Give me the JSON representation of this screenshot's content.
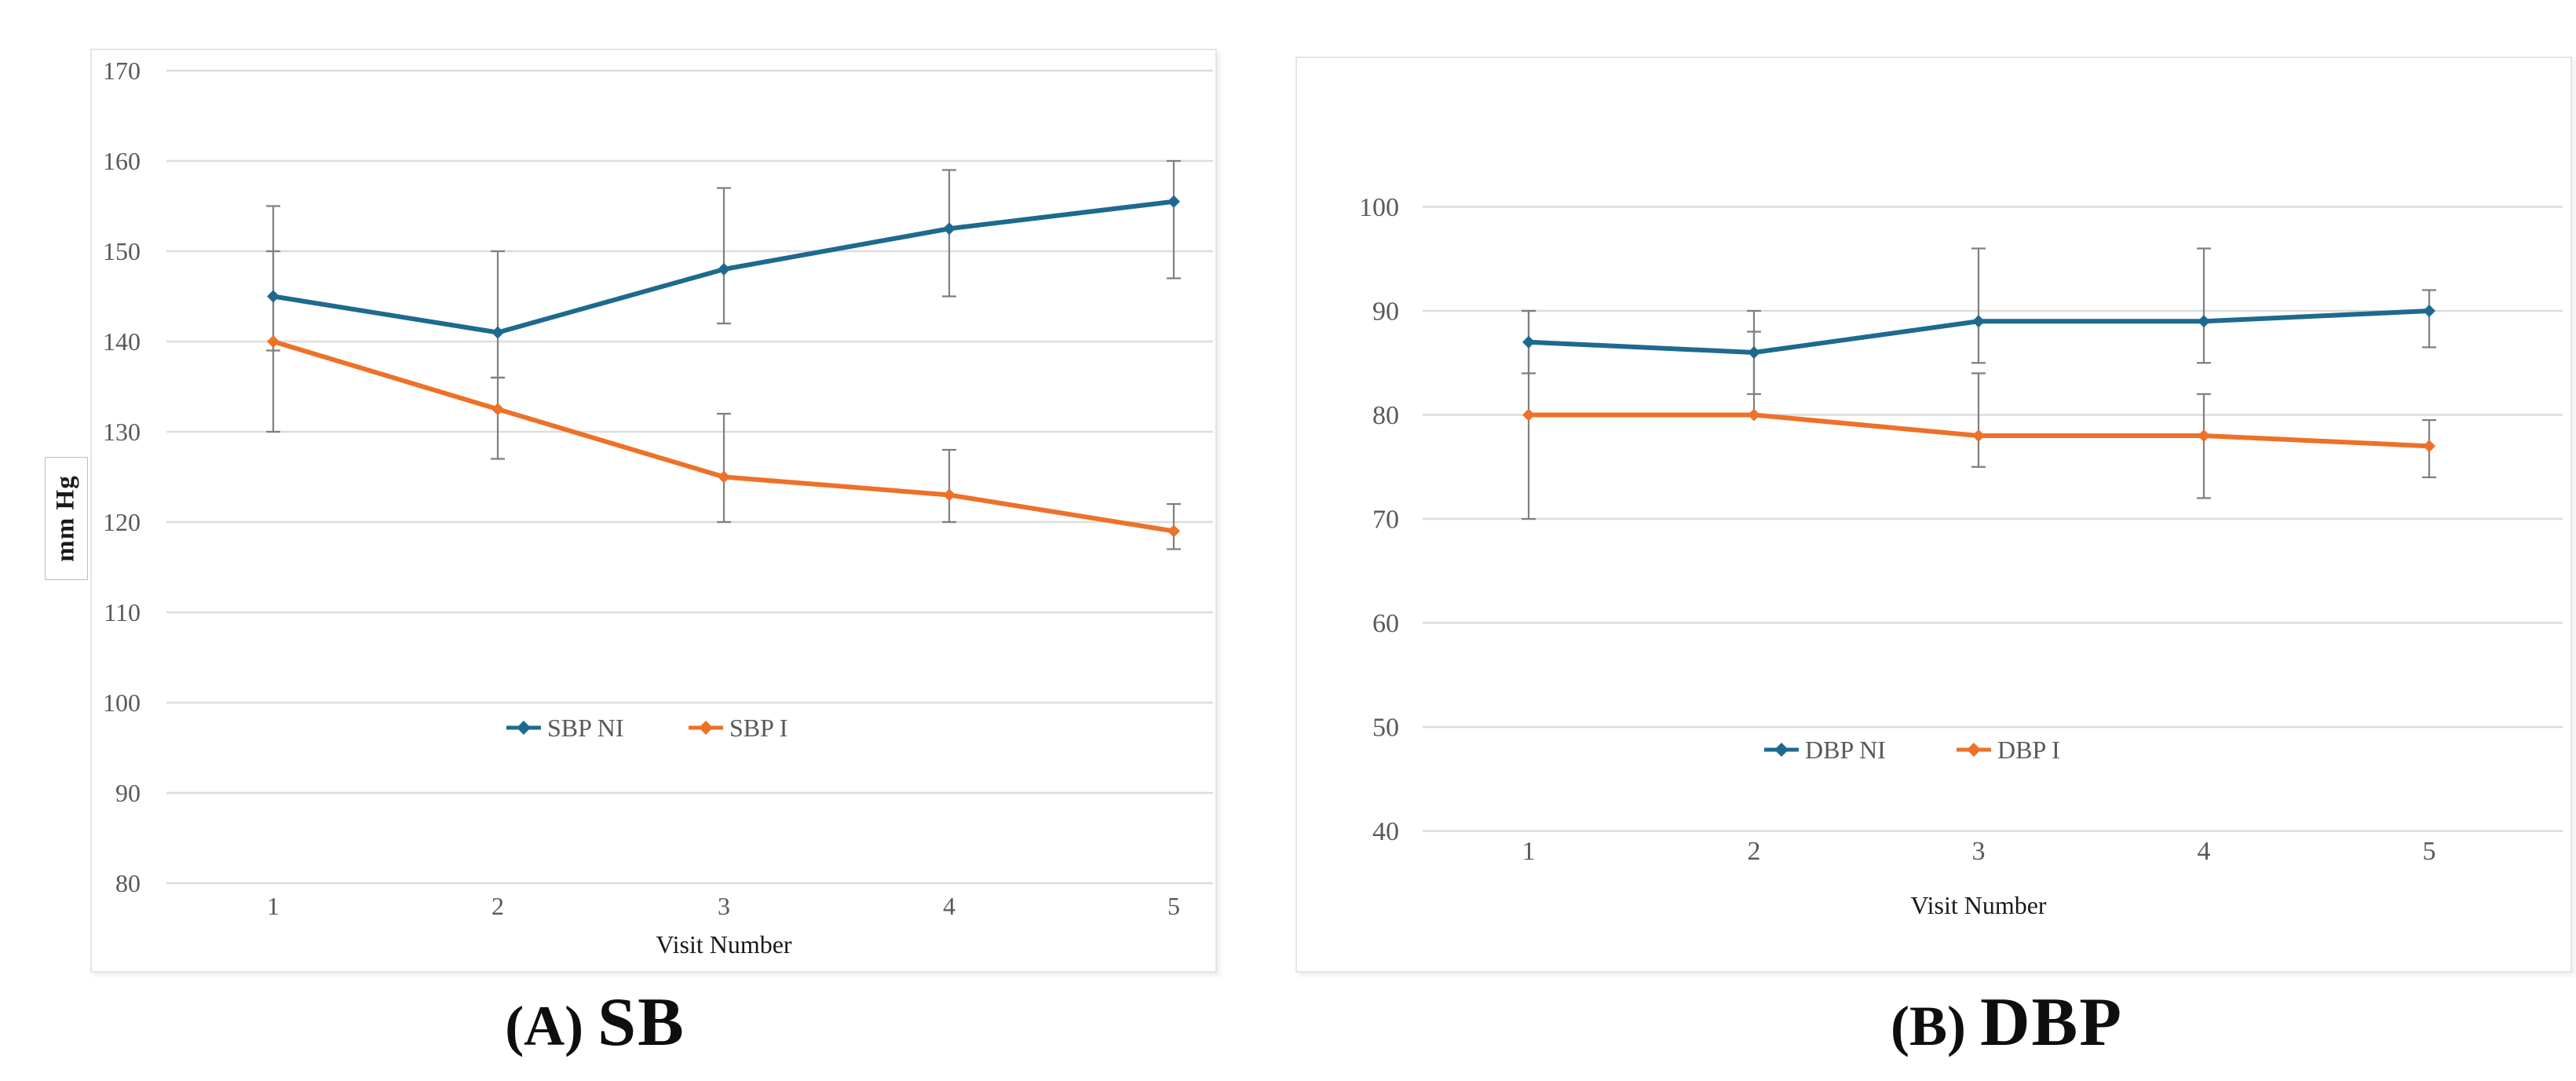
{
  "figure": {
    "captions": {
      "a_prefix": "(A)",
      "a_label": "SB",
      "b_prefix": "(B)",
      "b_label": "DBP"
    }
  },
  "colors": {
    "ni": "#1e6a8e",
    "i": "#ed7128",
    "error": "#7f7f7f",
    "grid": "#dcdcdc",
    "tick": "#595959",
    "card_border": "#e5e5e5"
  },
  "chart_data": [
    {
      "id": "sbp",
      "type": "line",
      "panel": "A",
      "title": "SB",
      "xlabel": "Visit Number",
      "ylabel": "mm Hg",
      "categories": [
        "1",
        "2",
        "3",
        "4",
        "5"
      ],
      "ylim": [
        80,
        170
      ],
      "yticks": [
        170,
        160,
        150,
        140,
        130,
        120,
        110,
        100,
        90,
        80
      ],
      "grid": true,
      "legend_position": "inside-bottom-center",
      "series": [
        {
          "name": "SBP NI",
          "color_key": "ni",
          "values": [
            145,
            141,
            148,
            152.5,
            155.5
          ],
          "err_low": [
            139,
            136,
            142,
            145,
            147
          ],
          "err_high": [
            155,
            150,
            157,
            159,
            160
          ]
        },
        {
          "name": "SBP I",
          "color_key": "i",
          "values": [
            140,
            132.5,
            125,
            123,
            119
          ],
          "err_low": [
            130,
            127,
            120,
            120,
            117
          ],
          "err_high": [
            150,
            136,
            132,
            128,
            122
          ]
        }
      ]
    },
    {
      "id": "dbp",
      "type": "line",
      "panel": "B",
      "title": "DBP",
      "xlabel": "Visit Number",
      "ylabel": "",
      "categories": [
        "1",
        "2",
        "3",
        "4",
        "5"
      ],
      "ylim": [
        40,
        100
      ],
      "yticks": [
        100,
        90,
        80,
        70,
        60,
        50,
        40
      ],
      "grid": true,
      "legend_position": "inside-bottom-center",
      "series": [
        {
          "name": "DBP NI",
          "color_key": "ni",
          "values": [
            87,
            86,
            89,
            89,
            90
          ],
          "err_low": [
            84,
            82,
            85,
            85,
            86.5
          ],
          "err_high": [
            90,
            90,
            96,
            96,
            92
          ]
        },
        {
          "name": "DBP I",
          "color_key": "i",
          "values": [
            80,
            80,
            78,
            78,
            77
          ],
          "err_low": [
            70,
            80,
            75,
            72,
            74
          ],
          "err_high": [
            90,
            88,
            84,
            82,
            79.5
          ]
        }
      ]
    }
  ]
}
